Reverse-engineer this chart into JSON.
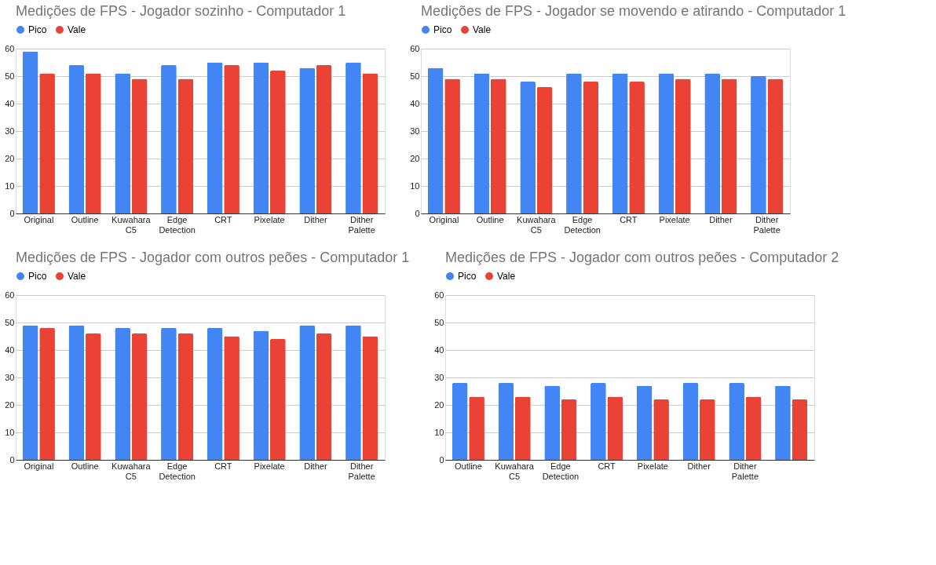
{
  "chart_data": [
    {
      "type": "bar",
      "title": "Medições de FPS - Jogador sozinho - Computador 1",
      "categories": [
        "Original",
        "Outline",
        "Kuwahara C5",
        "Edge Detection",
        "CRT",
        "Pixelate",
        "Dither",
        "Dither Palette"
      ],
      "series": [
        {
          "name": "Pico",
          "color": "#4285f4",
          "values": [
            59,
            54,
            51,
            54,
            55,
            55,
            53,
            55
          ]
        },
        {
          "name": "Vale",
          "color": "#ea4335",
          "values": [
            51,
            51,
            49,
            49,
            54,
            52,
            54,
            51
          ]
        }
      ],
      "ylim": [
        0,
        60
      ],
      "yticks": [
        0,
        10,
        20,
        30,
        40,
        50,
        60
      ],
      "grid": "y",
      "legend": "top"
    },
    {
      "type": "bar",
      "title": "Medições de FPS - Jogador se movendo e atirando - Computador 1",
      "categories": [
        "Original",
        "Outline",
        "Kuwahara C5",
        "Edge Detection",
        "CRT",
        "Pixelate",
        "Dither",
        "Dither Palette"
      ],
      "series": [
        {
          "name": "Pico",
          "color": "#4285f4",
          "values": [
            53,
            51,
            48,
            51,
            51,
            51,
            51,
            50
          ]
        },
        {
          "name": "Vale",
          "color": "#ea4335",
          "values": [
            49,
            49,
            46,
            48,
            48,
            49,
            49,
            49
          ]
        }
      ],
      "ylim": [
        0,
        60
      ],
      "yticks": [
        0,
        10,
        20,
        30,
        40,
        50,
        60
      ],
      "grid": "y",
      "legend": "top"
    },
    {
      "type": "bar",
      "title": "Medições de FPS - Jogador com outros peões - Computador 1",
      "categories": [
        "Original",
        "Outline",
        "Kuwahara C5",
        "Edge Detection",
        "CRT",
        "Pixelate",
        "Dither",
        "Dither Palette"
      ],
      "series": [
        {
          "name": "Pico",
          "color": "#4285f4",
          "values": [
            49,
            49,
            48,
            48,
            48,
            47,
            49,
            49
          ]
        },
        {
          "name": "Vale",
          "color": "#ea4335",
          "values": [
            48,
            46,
            46,
            46,
            45,
            44,
            46,
            45
          ]
        }
      ],
      "ylim": [
        0,
        60
      ],
      "yticks": [
        0,
        10,
        20,
        30,
        40,
        50,
        60
      ],
      "grid": "y",
      "legend": "top"
    },
    {
      "type": "bar",
      "title": "Medições de FPS - Jogador com outros peões - Computador 2",
      "categories": [
        "Outline",
        "Kuwahara C5",
        "Edge Detection",
        "CRT",
        "Pixelate",
        "Dither",
        "Dither Palette",
        null
      ],
      "series": [
        {
          "name": "Pico",
          "color": "#4285f4",
          "values": [
            28,
            28,
            27,
            28,
            27,
            28,
            28,
            27
          ]
        },
        {
          "name": "Vale",
          "color": "#ea4335",
          "values": [
            23,
            23,
            22,
            23,
            22,
            22,
            23,
            22
          ]
        }
      ],
      "ylim": [
        0,
        60
      ],
      "yticks": [
        0,
        10,
        20,
        30,
        40,
        50,
        60
      ],
      "grid": "y",
      "legend": "top"
    }
  ]
}
